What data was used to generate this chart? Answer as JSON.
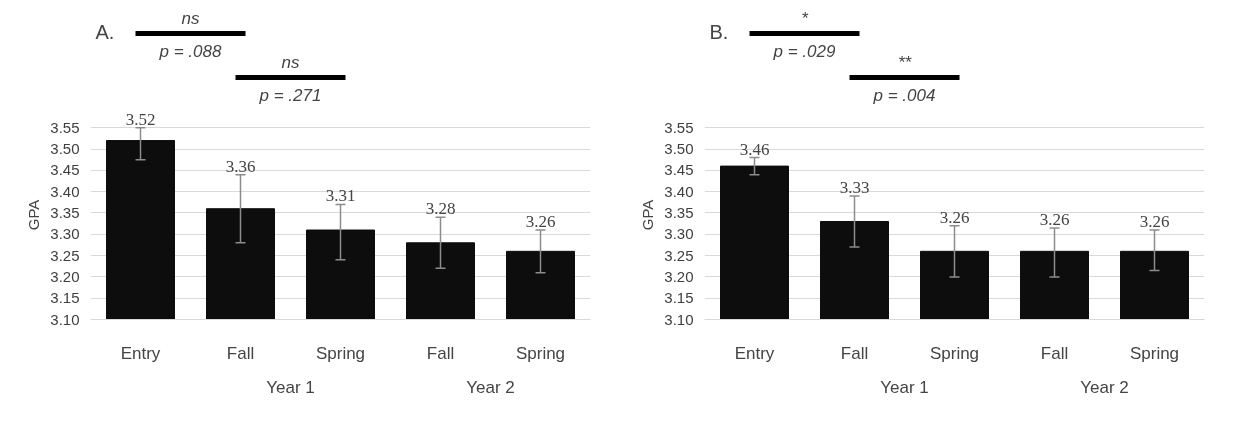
{
  "chart_data": [
    {
      "type": "bar",
      "title": "A.",
      "ylabel": "GPA",
      "categories": [
        "Entry",
        "Fall",
        "Spring",
        "Fall",
        "Spring"
      ],
      "values": [
        3.52,
        3.36,
        3.31,
        3.28,
        3.26
      ],
      "color": "#0d0d0d",
      "data_labels": true,
      "errors": [
        [
          3.475,
          3.55
        ],
        [
          3.28,
          3.44
        ],
        [
          3.24,
          3.37
        ],
        [
          3.22,
          3.34
        ],
        [
          3.21,
          3.31
        ]
      ],
      "ylim": [
        3.1,
        3.55
      ],
      "yticks": [
        {
          "value": 3.1,
          "label": "3.10"
        },
        {
          "value": 3.15,
          "label": "3.15"
        },
        {
          "value": 3.2,
          "label": "3.20"
        },
        {
          "value": 3.25,
          "label": "3.25"
        },
        {
          "value": 3.3,
          "label": "3.30"
        },
        {
          "value": 3.35,
          "label": "3.35"
        },
        {
          "value": 3.4,
          "label": "3.40"
        },
        {
          "value": 3.45,
          "label": "3.45"
        },
        {
          "value": 3.5,
          "label": "3.50"
        },
        {
          "value": 3.55,
          "label": "3.55"
        }
      ],
      "grid": "y",
      "annotations": [
        "ns",
        "p = .088",
        "ns",
        "p = .271",
        "Year 1",
        "Year 2"
      ]
    },
    {
      "type": "bar",
      "title": "B.",
      "ylabel": "GPA",
      "categories": [
        "Entry",
        "Fall",
        "Spring",
        "Fall",
        "Spring"
      ],
      "values": [
        3.46,
        3.33,
        3.26,
        3.26,
        3.26
      ],
      "color": "#0d0d0d",
      "data_labels": true,
      "errors": [
        [
          3.44,
          3.48
        ],
        [
          3.27,
          3.39
        ],
        [
          3.2,
          3.32
        ],
        [
          3.2,
          3.315
        ],
        [
          3.215,
          3.31
        ]
      ],
      "ylim": [
        3.1,
        3.55
      ],
      "yticks": [
        {
          "value": 3.1,
          "label": "3.10"
        },
        {
          "value": 3.15,
          "label": "3.15"
        },
        {
          "value": 3.2,
          "label": "3.20"
        },
        {
          "value": 3.25,
          "label": "3.25"
        },
        {
          "value": 3.3,
          "label": "3.30"
        },
        {
          "value": 3.35,
          "label": "3.35"
        },
        {
          "value": 3.4,
          "label": "3.40"
        },
        {
          "value": 3.45,
          "label": "3.45"
        },
        {
          "value": 3.5,
          "label": "3.50"
        },
        {
          "value": 3.55,
          "label": "3.55"
        }
      ],
      "grid": "y",
      "annotations": [
        "*",
        "p = .029",
        "**",
        "p = .004",
        "Year 1",
        "Year 2"
      ]
    }
  ]
}
